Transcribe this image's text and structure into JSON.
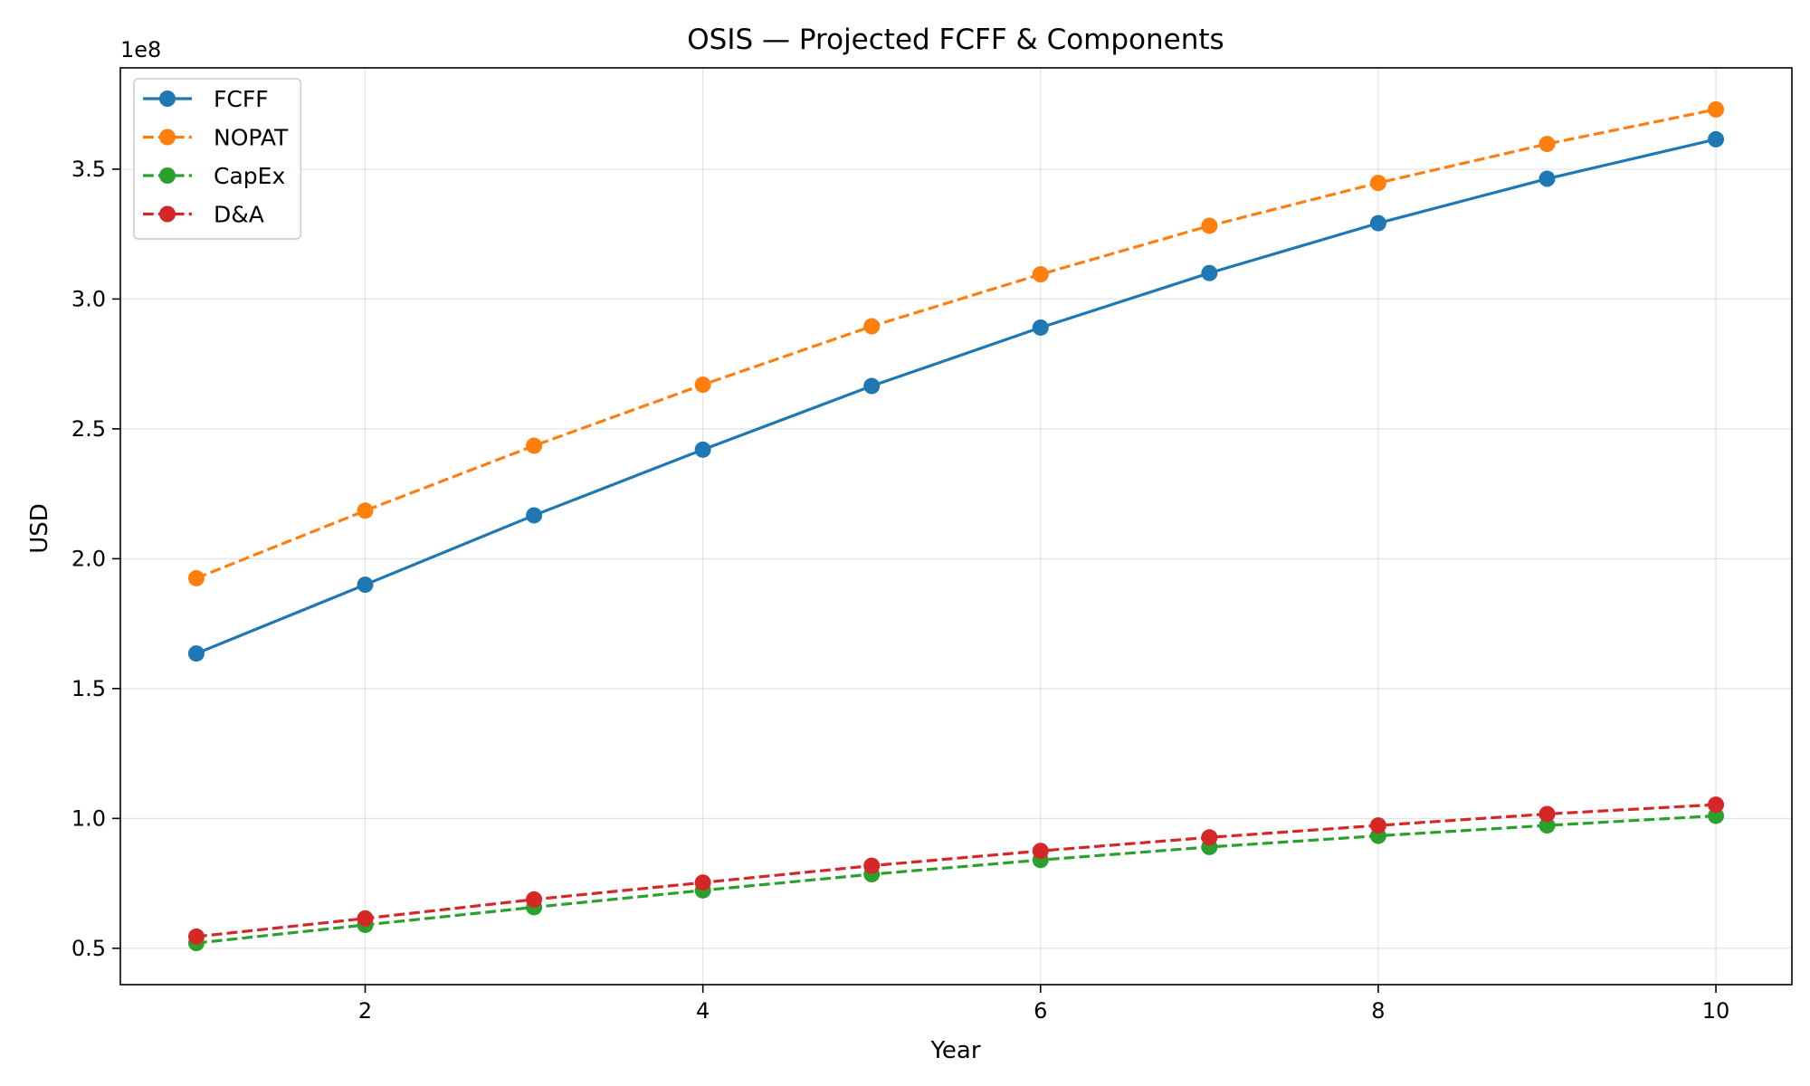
{
  "chart_data": {
    "type": "line",
    "title": "OSIS — Projected FCFF & Components",
    "xlabel": "Year",
    "ylabel": "USD",
    "y_offset_label": "1e8",
    "x": [
      1,
      2,
      3,
      4,
      5,
      6,
      7,
      8,
      9,
      10
    ],
    "xlim": [
      0.55,
      10.45
    ],
    "ylim": [
      36000000.0,
      389000000.0
    ],
    "x_ticks": [
      2,
      4,
      6,
      8,
      10
    ],
    "x_tick_labels": [
      "2",
      "4",
      "6",
      "8",
      "10"
    ],
    "y_ticks": [
      50000000.0,
      100000000.0,
      150000000.0,
      200000000.0,
      250000000.0,
      300000000.0,
      350000000.0
    ],
    "y_tick_labels": [
      "0.5",
      "1.0",
      "1.5",
      "2.0",
      "2.5",
      "3.0",
      "3.5"
    ],
    "grid": true,
    "legend_position": "top-left",
    "series": [
      {
        "name": "FCFF",
        "color": "#1f77b4",
        "linestyle": "solid",
        "marker": "circle",
        "values": [
          163500000,
          190000000,
          216700000,
          242000000,
          266500000,
          289000000,
          310000000,
          329200000,
          346300000,
          361500000
        ]
      },
      {
        "name": "NOPAT",
        "color": "#ff7f0e",
        "linestyle": "dashed",
        "marker": "circle",
        "values": [
          192500000,
          218500000,
          243500000,
          267000000,
          289500000,
          309500000,
          328200000,
          344700000,
          359700000,
          373000000
        ]
      },
      {
        "name": "CapEx",
        "color": "#2ca02c",
        "linestyle": "dashed",
        "marker": "circle",
        "values": [
          52000000,
          59000000,
          65800000,
          72300000,
          78500000,
          84000000,
          89000000,
          93300000,
          97300000,
          101000000
        ]
      },
      {
        "name": "D&A",
        "color": "#d62728",
        "linestyle": "dashed",
        "marker": "circle",
        "values": [
          54500000,
          61500000,
          68800000,
          75300000,
          81800000,
          87500000,
          92700000,
          97300000,
          101700000,
          105300000
        ]
      }
    ]
  }
}
